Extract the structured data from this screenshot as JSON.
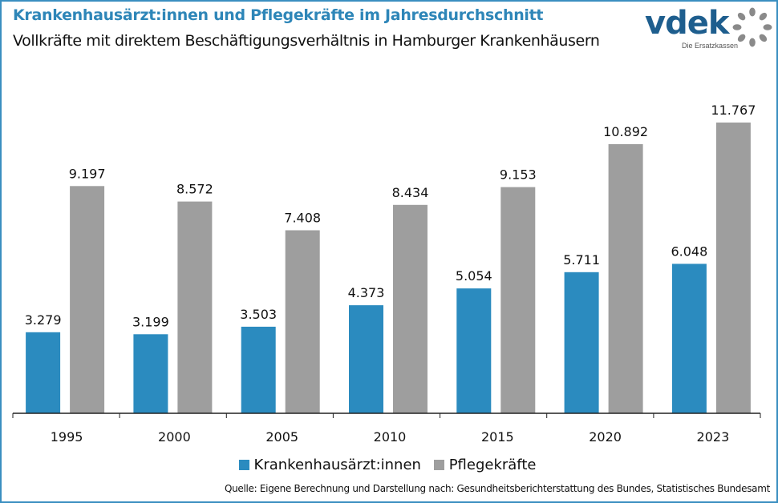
{
  "header": {
    "title": "Krankenhausärzt:innen und Pflegekräfte im Jahresdurchschnitt",
    "subtitle": "Vollkräfte mit direktem Beschäftigungsverhältnis in Hamburger Krankenhäusern"
  },
  "logo": {
    "text": "vdek",
    "tagline": "Die Ersatzkassen"
  },
  "source": "Quelle: Eigene Berechnung und Darstellung nach: Gesundheitsberichterstattung des Bundes, Statistisches Bundesamt",
  "colors": {
    "accent": "#2e86b8",
    "series_blue": "#2b8bbf",
    "series_gray": "#9e9e9e",
    "frame": "#3a8fc0"
  },
  "chart_data": {
    "type": "bar",
    "title": "Krankenhausärzt:innen und Pflegekräfte im Jahresdurchschnitt",
    "subtitle": "Vollkräfte mit direktem Beschäftigungsverhältnis in Hamburger Krankenhäusern",
    "xlabel": "",
    "ylabel": "",
    "ylim": [
      0,
      12000
    ],
    "grid": false,
    "legend_position": "bottom",
    "categories": [
      "1995",
      "2000",
      "2005",
      "2010",
      "2015",
      "2020",
      "2023"
    ],
    "series": [
      {
        "name": "Krankenhausärzt:innen",
        "color": "#2b8bbf",
        "values": [
          3279,
          3199,
          3503,
          4373,
          5054,
          5711,
          6048
        ],
        "labels": [
          "3.279",
          "3.199",
          "3.503",
          "4.373",
          "5.054",
          "5.711",
          "6.048"
        ]
      },
      {
        "name": "Pflegekräfte",
        "color": "#9e9e9e",
        "values": [
          9197,
          8572,
          7408,
          8434,
          9153,
          10892,
          11767
        ],
        "labels": [
          "9.197",
          "8.572",
          "7.408",
          "8.434",
          "9.153",
          "10.892",
          "11.767"
        ]
      }
    ]
  }
}
